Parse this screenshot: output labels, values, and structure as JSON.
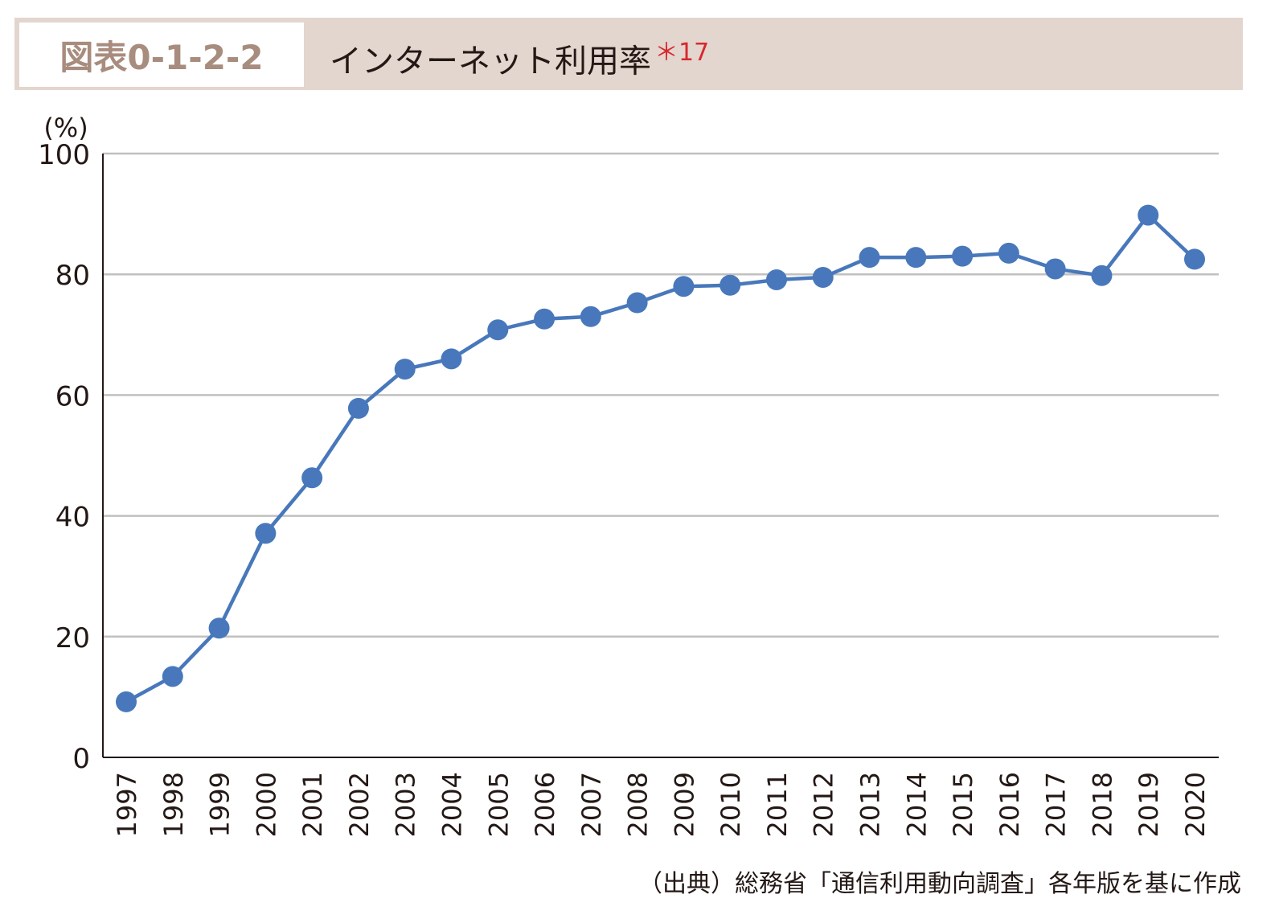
{
  "header": {
    "figure_number": "図表0-1-2-2",
    "title": "インターネット利用率",
    "note_ref": "＊17"
  },
  "source": "（出典）総務省「通信利用動向調査」各年版を基に作成",
  "colors": {
    "line": "#4878bb",
    "header_bg": "#e3d6ce",
    "label": "#a88c7e",
    "note": "#d7282f"
  },
  "chart_data": {
    "type": "line",
    "title": "インターネット利用率",
    "xlabel": "",
    "ylabel": "(%)",
    "ylim": [
      0,
      100
    ],
    "yticks": [
      0,
      20,
      40,
      60,
      80,
      100
    ],
    "grid": true,
    "categories": [
      "1997",
      "1998",
      "1999",
      "2000",
      "2001",
      "2002",
      "2003",
      "2004",
      "2005",
      "2006",
      "2007",
      "2008",
      "2009",
      "2010",
      "2011",
      "2012",
      "2013",
      "2014",
      "2015",
      "2016",
      "2017",
      "2018",
      "2019",
      "2020"
    ],
    "series": [
      {
        "name": "インターネット利用率",
        "values": [
          9.2,
          13.4,
          21.4,
          37.1,
          46.3,
          57.8,
          64.3,
          66.0,
          70.8,
          72.6,
          73.0,
          75.3,
          78.0,
          78.2,
          79.1,
          79.5,
          82.8,
          82.8,
          83.0,
          83.5,
          80.9,
          79.8,
          89.8,
          82.5
        ]
      }
    ]
  }
}
